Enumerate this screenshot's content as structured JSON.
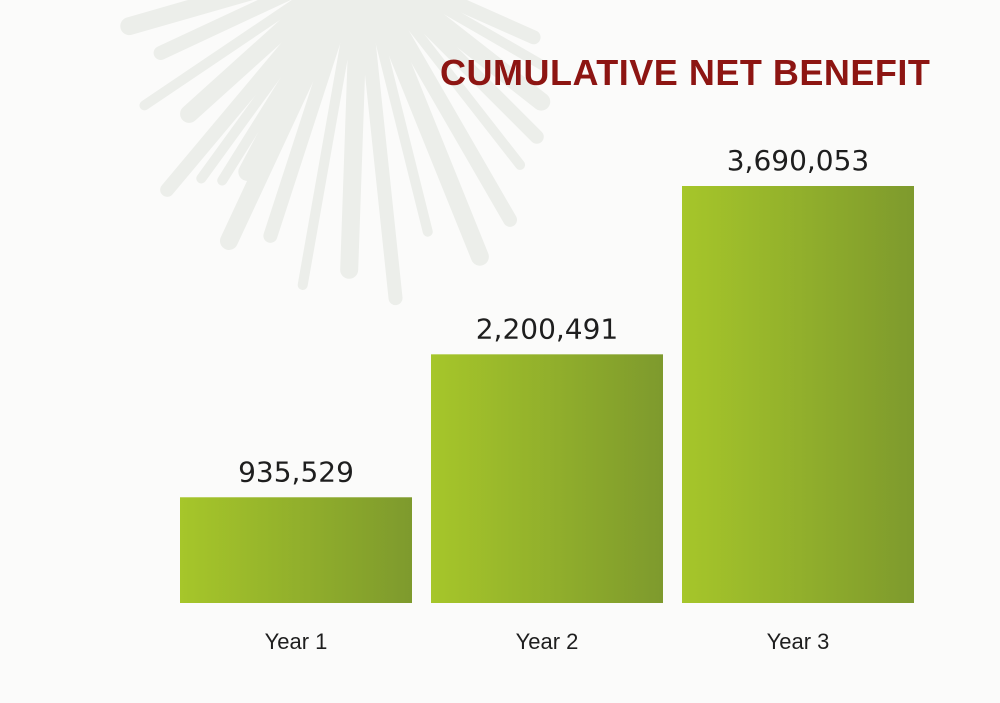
{
  "chart_data": {
    "type": "bar",
    "title": "CUMULATIVE NET BENEFIT",
    "categories": [
      "Year 1",
      "Year 2",
      "Year 3"
    ],
    "values": [
      935529,
      2200491,
      3690053
    ],
    "value_labels": [
      "935,529",
      "2,200,491",
      "3,690,053"
    ],
    "xlabel": "",
    "ylabel": "",
    "ylim": [
      0,
      4000000
    ],
    "grid": false,
    "legend": "none",
    "colors": {
      "bar_light": "#a6c62a",
      "bar_dark": "#7e9a2d",
      "title": "#8d1512",
      "text": "#1e1e1e"
    }
  }
}
